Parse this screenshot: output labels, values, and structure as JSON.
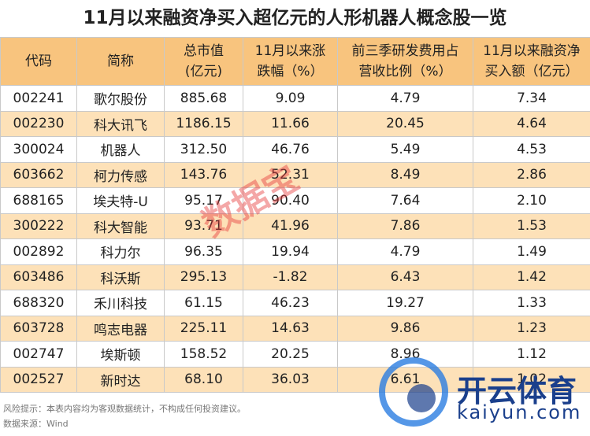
{
  "header": {
    "title": "11月以来融资净买入超亿元的人形机器人概念股一览"
  },
  "table": {
    "columns": [
      "代码",
      "简称",
      "总市值\n(亿元)",
      "11月以来涨\n跌幅（%）",
      "前三季研发费用占\n营收比例（%）",
      "11月以来融资净\n买入额（亿元）"
    ],
    "rows": [
      [
        "002241",
        "歌尔股份",
        "885.68",
        "9.09",
        "4.79",
        "7.34"
      ],
      [
        "002230",
        "科大讯飞",
        "1186.15",
        "11.66",
        "20.45",
        "4.64"
      ],
      [
        "300024",
        "机器人",
        "312.50",
        "46.76",
        "5.49",
        "4.53"
      ],
      [
        "603662",
        "柯力传感",
        "143.76",
        "52.31",
        "8.49",
        "2.86"
      ],
      [
        "688165",
        "埃夫特-U",
        "95.17",
        "90.40",
        "7.64",
        "2.10"
      ],
      [
        "300222",
        "科大智能",
        "93.71",
        "41.96",
        "7.86",
        "1.53"
      ],
      [
        "002892",
        "科力尔",
        "96.35",
        "19.94",
        "4.79",
        "1.49"
      ],
      [
        "603486",
        "科沃斯",
        "295.13",
        "-1.82",
        "6.43",
        "1.42"
      ],
      [
        "688320",
        "禾川科技",
        "61.15",
        "46.23",
        "19.27",
        "1.33"
      ],
      [
        "603728",
        "鸣志电器",
        "225.11",
        "14.63",
        "9.86",
        "1.23"
      ],
      [
        "002747",
        "埃斯顿",
        "158.52",
        "20.25",
        "8.96",
        "1.12"
      ],
      [
        "002527",
        "新时达",
        "68.10",
        "36.03",
        "6.61",
        "1.02"
      ]
    ]
  },
  "footer": {
    "note": "风险提示：本表内容均为客观数据统计，不构成任何投资建议。",
    "source": "数据来源：Wind"
  },
  "watermarks": {
    "stamp": "数据宝",
    "brand": "开云体育",
    "url": "kaiyun.com"
  }
}
